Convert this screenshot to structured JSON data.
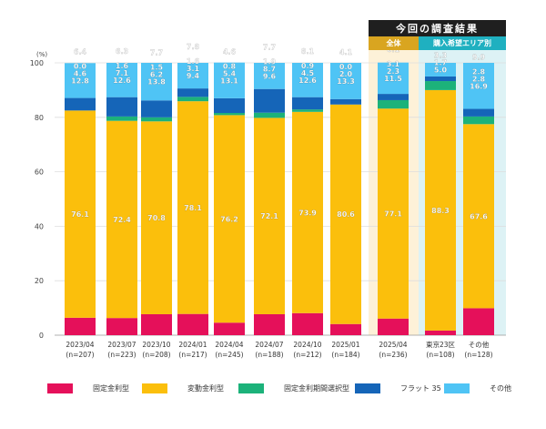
{
  "header": {
    "main": "今回の調査結果",
    "overall": "全体",
    "by_area": "購入希望エリア別"
  },
  "chart_data": {
    "type": "bar",
    "stacked": true,
    "y_unit": "(%)",
    "ylim": [
      0,
      100
    ],
    "yticks": [
      0,
      20,
      40,
      60,
      80,
      100
    ],
    "categories": [
      [
        "2023/04",
        "(n=207)"
      ],
      [
        "2023/07",
        "(n=223)"
      ],
      [
        "2023/10",
        "(n=208)"
      ],
      [
        "2024/01",
        "(n=217)"
      ],
      [
        "2024/04",
        "(n=245)"
      ],
      [
        "2024/07",
        "(n=188)"
      ],
      [
        "2024/10",
        "(n=212)"
      ],
      [
        "2025/01",
        "(n=184)"
      ],
      [
        "2025/04",
        "(n=236)"
      ],
      [
        "東京23区",
        "(n=108)"
      ],
      [
        "その他",
        "(n=128)"
      ]
    ],
    "series": [
      {
        "name": "固定金利型",
        "color": "#e5105a",
        "values": [
          6.4,
          6.3,
          7.7,
          7.8,
          4.6,
          7.7,
          8.1,
          4.1,
          6.1,
          1.7,
          9.9
        ]
      },
      {
        "name": "変動金利型",
        "color": "#fbbf0c",
        "values": [
          76.1,
          72.4,
          70.8,
          78.1,
          76.2,
          72.1,
          73.9,
          80.6,
          77.1,
          88.3,
          67.6
        ]
      },
      {
        "name": "固定金利期間選択型",
        "color": "#1cb27a",
        "values": [
          0.0,
          1.6,
          1.5,
          1.6,
          0.8,
          1.9,
          0.9,
          0.0,
          3.1,
          3.3,
          2.8
        ]
      },
      {
        "name": "フラット 35",
        "color": "#1565b8",
        "values": [
          4.6,
          7.1,
          6.2,
          3.1,
          5.4,
          8.7,
          4.5,
          2.0,
          2.3,
          1.7,
          2.8
        ]
      },
      {
        "name": "その他",
        "color": "#4fc4f5",
        "values": [
          12.8,
          12.6,
          13.8,
          9.4,
          13.1,
          9.6,
          12.6,
          13.3,
          11.5,
          5.0,
          16.9
        ]
      }
    ],
    "grid": true,
    "legend": "bottom"
  }
}
